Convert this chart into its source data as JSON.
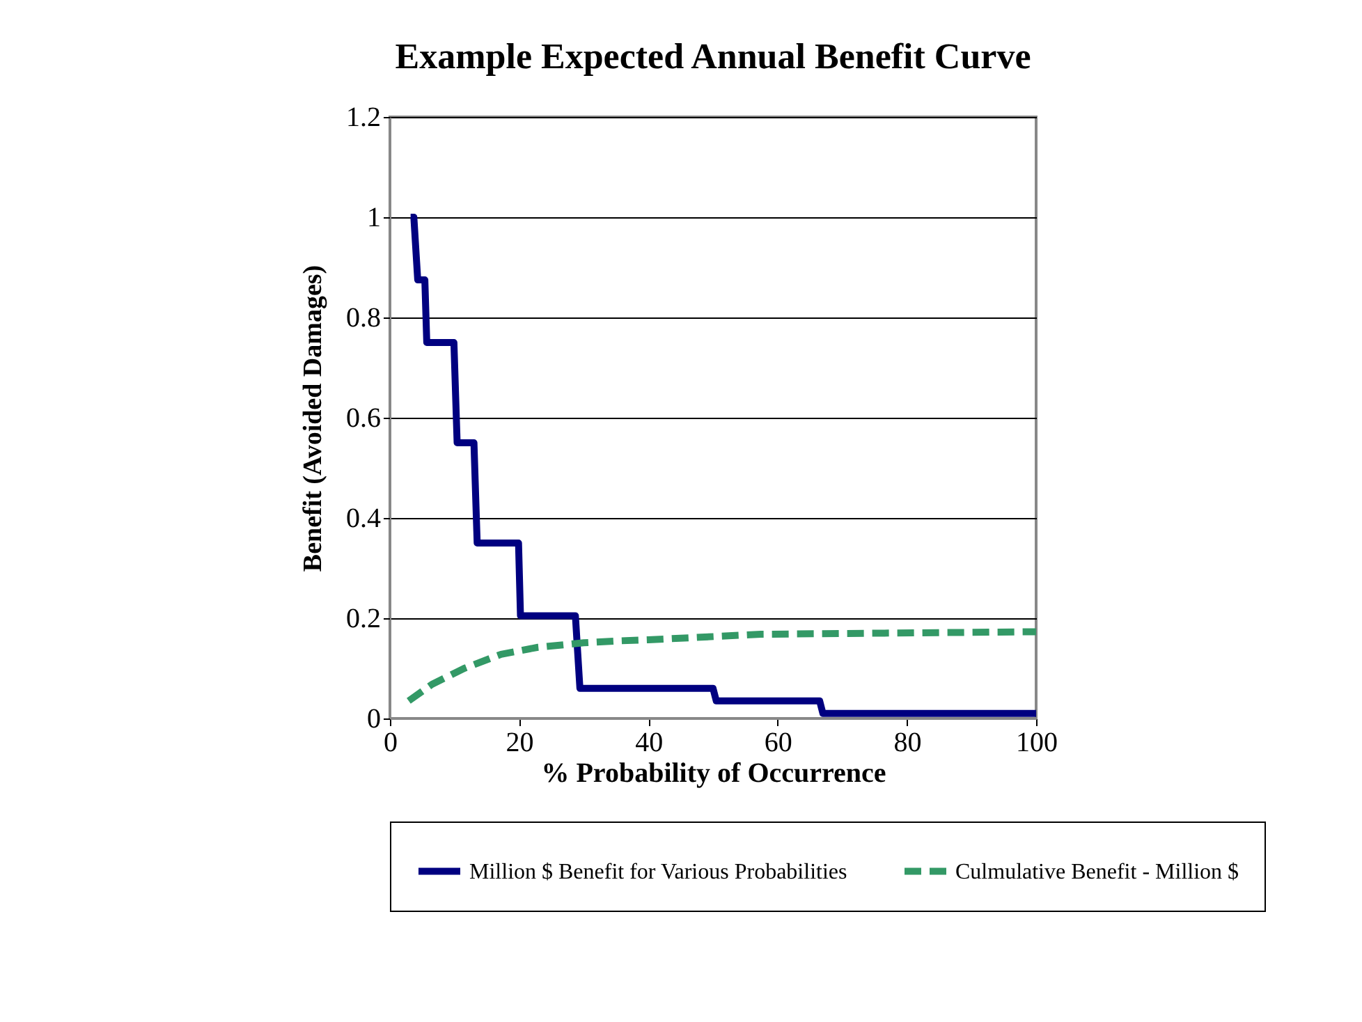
{
  "chart_data": {
    "type": "line",
    "title": "Example Expected Annual Benefit Curve",
    "xlabel": "% Probability of Occurrence",
    "ylabel": "Benefit (Avoided Damages)",
    "xlim": [
      0,
      100
    ],
    "xticks": [
      0,
      20,
      40,
      60,
      80,
      100
    ],
    "ylim": [
      0,
      1.2
    ],
    "yticks": [
      0,
      0.2,
      0.4,
      0.6,
      0.8,
      1,
      1.2
    ],
    "grid": "y",
    "legend": "bottom",
    "marker": "none",
    "series": [
      {
        "name": "Million $ Benefit for Various Probabilities",
        "color": "#000080",
        "line_style": "solid",
        "x": [
          3.2,
          3.7,
          4.3,
          5.4,
          5.7,
          9.9,
          10.4,
          13.0,
          13.5,
          19.9,
          20.2,
          28.7,
          29.4,
          50.0,
          50.5,
          66.5,
          67.0,
          100
        ],
        "values": [
          1,
          1,
          0.875,
          0.875,
          0.75,
          0.75,
          0.55,
          0.55,
          0.35,
          0.35,
          0.205,
          0.205,
          0.06,
          0.06,
          0.035,
          0.035,
          0.01,
          0.01
        ]
      },
      {
        "name": "Culmulative Benefit - Million $",
        "color": "#339966",
        "line_style": "dashed",
        "x": [
          2.9,
          6.5,
          11.5,
          17.2,
          22.9,
          30,
          35.8,
          40,
          57.4,
          100
        ],
        "values": [
          0.035,
          0.068,
          0.1,
          0.128,
          0.142,
          0.151,
          0.155,
          0.157,
          0.168,
          0.173
        ]
      }
    ]
  }
}
